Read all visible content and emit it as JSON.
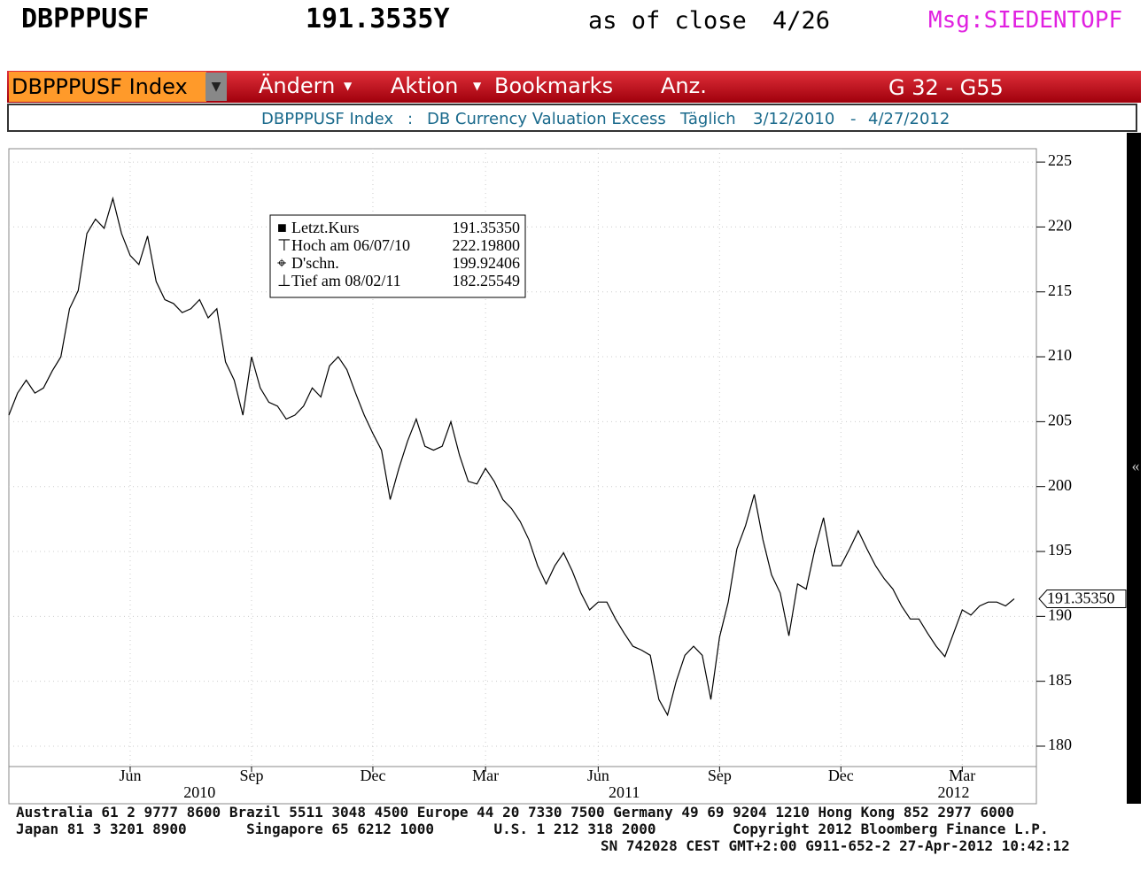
{
  "header": {
    "ticker": "DBPPPUSF",
    "price": "191.3535Y",
    "as_of": "as of close",
    "date": "4/26",
    "msg": "Msg:SIEDENTOPF"
  },
  "toolbar": {
    "security": "DBPPPUSF Index",
    "menu": [
      "Ändern",
      "Aktion",
      "Bookmarks",
      "Anz."
    ],
    "page": "G 32 - G55"
  },
  "info": {
    "security": "DBPPPUSF Index",
    "separator": ":",
    "description": "DB Currency Valuation Excess",
    "frequency": "Täglich",
    "start": "3/12/2010",
    "dash": "-",
    "end": "4/27/2012"
  },
  "chart_data": {
    "type": "line",
    "color": "#000000",
    "grid": true,
    "categories": [
      null,
      null,
      null,
      null,
      null,
      null,
      null,
      null,
      null,
      null,
      null,
      null,
      null,
      null,
      "Jun",
      null,
      null,
      null,
      null,
      null,
      null,
      null,
      null,
      null,
      null,
      null,
      null,
      null,
      "Sep",
      null,
      null,
      null,
      null,
      null,
      null,
      null,
      null,
      null,
      null,
      null,
      null,
      null,
      "Dec",
      null,
      null,
      null,
      null,
      null,
      null,
      null,
      null,
      null,
      null,
      null,
      null,
      "Mar",
      null,
      null,
      null,
      null,
      null,
      null,
      null,
      null,
      null,
      null,
      null,
      null,
      "Jun",
      null,
      null,
      null,
      null,
      null,
      null,
      null,
      null,
      null,
      null,
      null,
      null,
      null,
      "Sep",
      null,
      null,
      null,
      null,
      null,
      null,
      null,
      null,
      null,
      null,
      null,
      null,
      null,
      "Dec",
      null,
      null,
      null,
      null,
      null,
      null,
      null,
      null,
      null,
      null,
      null,
      null,
      null,
      "Mar",
      null,
      null,
      null,
      null,
      null,
      null
    ],
    "x_groups": [
      null,
      null,
      null,
      null,
      null,
      null,
      null,
      null,
      null,
      null,
      null,
      null,
      null,
      null,
      null,
      null,
      null,
      null,
      null,
      null,
      null,
      null,
      "2010",
      null,
      null,
      null,
      null,
      null,
      null,
      null,
      null,
      null,
      null,
      null,
      null,
      null,
      null,
      null,
      null,
      null,
      null,
      null,
      null,
      null,
      null,
      null,
      null,
      null,
      null,
      null,
      null,
      null,
      null,
      null,
      null,
      null,
      null,
      null,
      null,
      null,
      null,
      null,
      null,
      null,
      null,
      null,
      null,
      null,
      null,
      null,
      null,
      "2011",
      null,
      null,
      null,
      null,
      null,
      null,
      null,
      null,
      null,
      null,
      null,
      null,
      null,
      null,
      null,
      null,
      null,
      null,
      null,
      null,
      null,
      null,
      null,
      null,
      null,
      null,
      null,
      null,
      null,
      null,
      null,
      null,
      null,
      null,
      null,
      null,
      null,
      "2012",
      null,
      null,
      null,
      null,
      null,
      null,
      null
    ],
    "series": [
      {
        "values": [
          205.5,
          207.2,
          208.2,
          207.2,
          207.6,
          208.9,
          210,
          213.7,
          215.1,
          219.5,
          220.6,
          219.9,
          222.2,
          219.5,
          217.8,
          217.1,
          219.3,
          215.8,
          214.4,
          214.1,
          213.4,
          213.7,
          214.4,
          213.0,
          213.7,
          209.6,
          208.2,
          205.5,
          210,
          207.6,
          206.5,
          206.2,
          205.2,
          205.5,
          206.2,
          207.6,
          206.9,
          209.3,
          210,
          209,
          207.2,
          205.5,
          204.1,
          202.8,
          199,
          201.4,
          203.5,
          205.2,
          203.1,
          202.8,
          203.1,
          205,
          202.4,
          200.4,
          200.2,
          201.4,
          200.4,
          199,
          198.3,
          197.3,
          195.9,
          193.9,
          192.5,
          193.9,
          194.9,
          193.5,
          191.8,
          190.5,
          191.1,
          191.1,
          189.8,
          188.7,
          187.7,
          187.4,
          187,
          183.6,
          182.4,
          185,
          187,
          187.7,
          187,
          183.6,
          188.4,
          191.1,
          195.2,
          197,
          199.4,
          195.9,
          193.2,
          191.8,
          188.5,
          192.5,
          192.1,
          195.2,
          197.6,
          193.9,
          193.9,
          195.2,
          196.6,
          195.2,
          193.9,
          192.9,
          192.1,
          190.8,
          189.8,
          189.8,
          188.7,
          187.7,
          186.9,
          188.7,
          190.5,
          190.1,
          190.8,
          191.1,
          191.1,
          190.8,
          191.3535
        ]
      }
    ],
    "ylim": [
      178.43,
      226.03
    ],
    "yticks": [
      180,
      185,
      190,
      195,
      200,
      205,
      210,
      215,
      220,
      225
    ],
    "last_value": {
      "value": 191.3535,
      "label": "191.35350"
    },
    "stats": [
      {
        "label": "Letzt.Kurs",
        "value": "191.35350"
      },
      {
        "label": "Hoch am 06/07/10",
        "value": "222.19800"
      },
      {
        "label": "D'schn.",
        "value": "199.92406"
      },
      {
        "label": "Tief am 08/02/11",
        "value": "182.25549"
      }
    ]
  },
  "footer": [
    "Australia 61 2 9777 8600 Brazil 5511 3048 4500 Europe 44 20 7330 7500 Germany 49 69 9204 1210 Hong Kong 852 2977 6000",
    "Japan 81 3 3201 8900       Singapore 65 6212 1000       U.S. 1 212 318 2000         Copyright 2012 Bloomberg Finance L.P.",
    "SN 742028 CEST GMT+2:00 G911-652-2 27-Apr-2012 10:42:12"
  ]
}
